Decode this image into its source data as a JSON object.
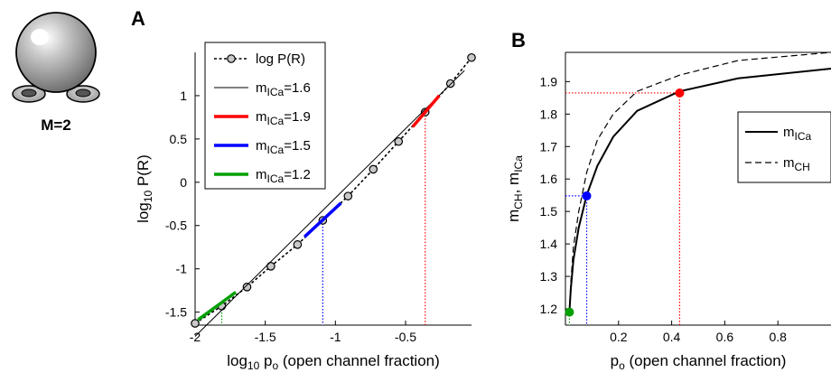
{
  "icon": {
    "label": "M=2",
    "name": "two-electrode-channel-icon"
  },
  "chart_data": [
    {
      "panel": "A",
      "type": "line",
      "xlabel": {
        "pre": "log",
        "sub": "10",
        "mid": " p",
        "sub2": "o",
        "post": " (open channel fraction)"
      },
      "ylabel": {
        "pre": "log",
        "sub": "10",
        "post": " P(R)"
      },
      "xlim": [
        -2,
        -0.03
      ],
      "ylim": [
        -1.65,
        1.5
      ],
      "xticks": [
        -2,
        -1.5,
        -1,
        -0.5
      ],
      "xtick_labels": [
        "-2",
        "-1.5",
        "-1",
        "-0.5"
      ],
      "yticks": [
        -1.5,
        -1,
        -0.5,
        0,
        0.5,
        1
      ],
      "ytick_labels": [
        "-1.5",
        "-1",
        "-0.5",
        "0",
        "0.5",
        "1"
      ],
      "series": [
        {
          "name": "log P(R)",
          "style": "dotted-markers",
          "color": "#000000",
          "x": [
            -2.0,
            -1.81,
            -1.63,
            -1.46,
            -1.27,
            -1.09,
            -0.91,
            -0.73,
            -0.55,
            -0.36,
            -0.18,
            -0.03
          ],
          "y": [
            -1.63,
            -1.43,
            -1.21,
            -0.97,
            -0.72,
            -0.44,
            -0.16,
            0.15,
            0.47,
            0.81,
            1.14,
            1.44
          ]
        },
        {
          "name": "m_ICa=1.6",
          "style": "thin-line",
          "color": "#000000",
          "x": [
            -2.0,
            -0.08
          ],
          "y": [
            -1.78,
            1.29
          ]
        },
        {
          "name": "m_ICa=1.9",
          "style": "thick-line",
          "color": "#ff0000",
          "x": [
            -0.45,
            -0.26
          ],
          "y": [
            0.64,
            1.0
          ]
        },
        {
          "name": "m_ICa=1.5",
          "style": "thick-line",
          "color": "#0000ff",
          "x": [
            -1.22,
            -0.96
          ],
          "y": [
            -0.63,
            -0.24
          ]
        },
        {
          "name": "m_ICa=1.2",
          "style": "thick-line",
          "color": "#00a000",
          "x": [
            -1.98,
            -1.71
          ],
          "y": [
            -1.59,
            -1.27
          ]
        }
      ],
      "guides": [
        {
          "color": "#ff0000",
          "x": -0.36,
          "y": 0.81
        },
        {
          "color": "#0000ff",
          "x": -1.09,
          "y": -0.44
        },
        {
          "color": "#00a000",
          "x": -1.81,
          "y": -1.43
        }
      ],
      "legend": {
        "position": "top-left",
        "entries": [
          {
            "pre": "log P(R)",
            "sub": "",
            "post": ""
          },
          {
            "pre": "m",
            "sub": "ICa",
            "post": "=1.6"
          },
          {
            "pre": "m",
            "sub": "ICa",
            "post": "=1.9"
          },
          {
            "pre": "m",
            "sub": "ICa",
            "post": "=1.5"
          },
          {
            "pre": "m",
            "sub": "ICa",
            "post": "=1.2"
          }
        ]
      }
    },
    {
      "panel": "B",
      "type": "line",
      "xlabel": {
        "pre": "p",
        "sub": "o",
        "post": " (open channel fraction)"
      },
      "ylabel": {
        "pre": "m",
        "sub": "CH",
        "mid": ", m",
        "sub2": "ICa",
        "post": ""
      },
      "xlim": [
        0.0,
        1.0
      ],
      "ylim": [
        1.15,
        1.99
      ],
      "xticks": [
        0.2,
        0.4,
        0.6,
        0.8
      ],
      "xtick_labels": [
        "0.2",
        "0.4",
        "0.6",
        "0.8"
      ],
      "yticks": [
        1.2,
        1.3,
        1.4,
        1.5,
        1.6,
        1.7,
        1.8,
        1.9
      ],
      "ytick_labels": [
        "1.2",
        "1.3",
        "1.4",
        "1.5",
        "1.6",
        "1.7",
        "1.8",
        "1.9"
      ],
      "series": [
        {
          "name": "m_ICa",
          "style": "solid",
          "color": "#000000",
          "x": [
            0.015,
            0.02,
            0.03,
            0.05,
            0.08,
            0.12,
            0.18,
            0.27,
            0.43,
            0.65,
            1.0
          ],
          "y": [
            1.19,
            1.26,
            1.35,
            1.45,
            1.55,
            1.64,
            1.73,
            1.81,
            1.87,
            1.91,
            1.94
          ]
        },
        {
          "name": "m_CH",
          "style": "dashed",
          "color": "#000000",
          "x": [
            0.015,
            0.02,
            0.03,
            0.05,
            0.08,
            0.12,
            0.18,
            0.27,
            0.43,
            0.65,
            1.0
          ],
          "y": [
            1.19,
            1.28,
            1.39,
            1.5,
            1.62,
            1.72,
            1.8,
            1.87,
            1.92,
            1.965,
            1.99
          ]
        }
      ],
      "points": [
        {
          "x": 0.43,
          "y": 1.865,
          "color": "#ff0000"
        },
        {
          "x": 0.08,
          "y": 1.548,
          "color": "#0000ff"
        },
        {
          "x": 0.015,
          "y": 1.19,
          "color": "#00a000"
        }
      ],
      "legend": {
        "position": "right",
        "entries": [
          {
            "pre": "m",
            "sub": "ICa",
            "post": ""
          },
          {
            "pre": "m",
            "sub": "CH",
            "post": ""
          }
        ]
      }
    }
  ]
}
